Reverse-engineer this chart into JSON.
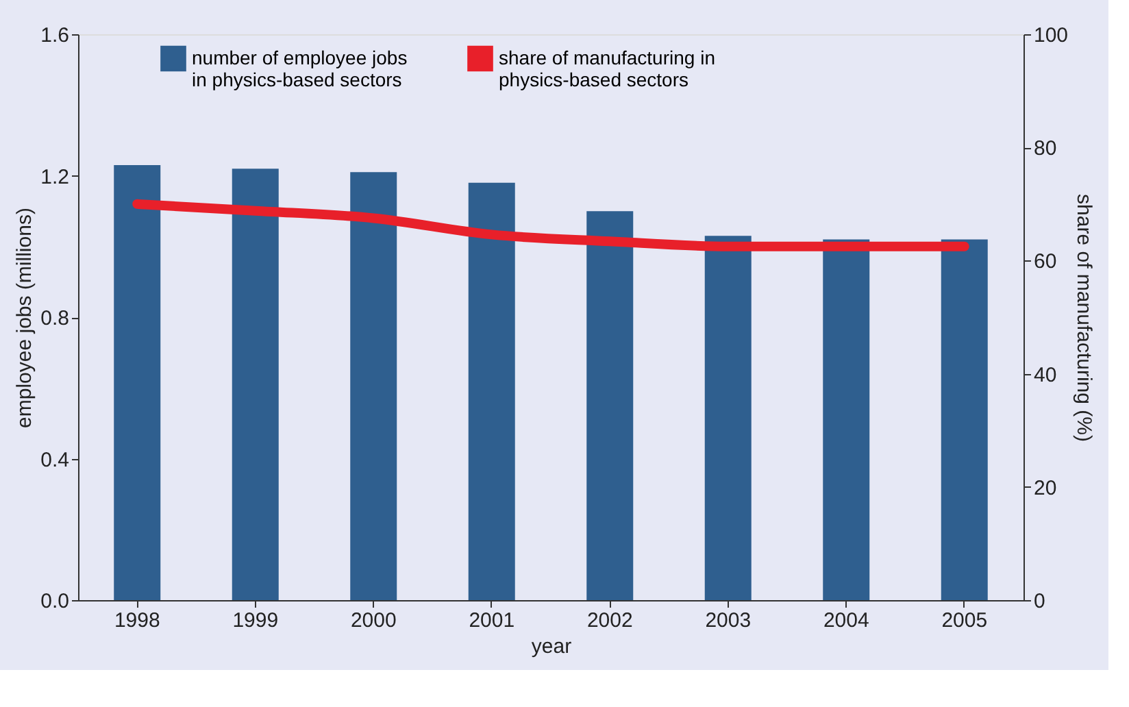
{
  "chart_data": {
    "type": "bar",
    "xlabel": "year",
    "ylabel": "employee jobs (millions)",
    "y2label": "share of manufacturing (%)",
    "categories": [
      "1998",
      "1999",
      "2000",
      "2001",
      "2002",
      "2003",
      "2004",
      "2005"
    ],
    "series": [
      {
        "name": "number of employee jobs in physics-based sectors",
        "color": "#2f5f8f",
        "values": [
          1.23,
          1.22,
          1.21,
          1.18,
          1.1,
          1.03,
          1.02,
          1.02
        ]
      },
      {
        "name": "share of manufacturing in physics-based sectors",
        "type": "line",
        "axis": "y2",
        "color": "#e8202a",
        "values": [
          70,
          68.8,
          67.5,
          64.6,
          63.4,
          62.5,
          62.5,
          62.5
        ]
      }
    ],
    "ylim": [
      0,
      1.6
    ],
    "yticks": [
      {
        "value": 0,
        "label": "0.0"
      },
      {
        "value": 0.4,
        "label": "0.4"
      },
      {
        "value": 0.8,
        "label": "0.8"
      },
      {
        "value": 1.2,
        "label": "1.2"
      },
      {
        "value": 1.6,
        "label": "1.6"
      }
    ],
    "y2lim": [
      0,
      100
    ],
    "y2ticks": [
      0,
      20,
      40,
      60,
      80,
      100
    ],
    "grid": false,
    "legend": "top",
    "line_style": "solid",
    "marker": "none"
  }
}
